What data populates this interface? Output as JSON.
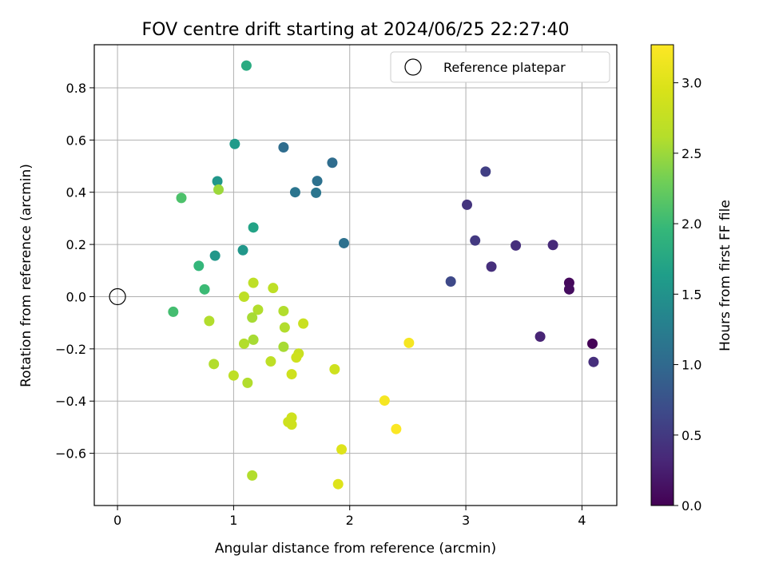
{
  "chart_data": {
    "type": "scatter",
    "title": "FOV centre drift starting at 2024/06/25 22:27:40",
    "xlabel": "Angular distance from reference (arcmin)",
    "ylabel": "Rotation from reference (arcmin)",
    "xlim": [
      -0.2,
      4.3
    ],
    "ylim": [
      -0.8,
      0.965
    ],
    "xticks": [
      0,
      1,
      2,
      3,
      4
    ],
    "xtick_labels": [
      "0",
      "1",
      "2",
      "3",
      "4"
    ],
    "yticks": [
      -0.6,
      -0.4,
      -0.2,
      0.0,
      0.2,
      0.4,
      0.6,
      0.8
    ],
    "ytick_labels": [
      "−0.6",
      "−0.4",
      "−0.2",
      "0.0",
      "0.2",
      "0.4",
      "0.6",
      "0.8"
    ],
    "grid": true,
    "legend": {
      "position": "top-right",
      "label": "Reference platepar"
    },
    "reference_point": {
      "x": 0.0,
      "y": 0.0
    },
    "colorbar": {
      "label": "Hours from first FF file",
      "colormap": "viridis",
      "range": [
        0.0,
        3.27
      ],
      "ticks": [
        0.0,
        0.5,
        1.0,
        1.5,
        2.0,
        2.5,
        3.0
      ],
      "tick_labels": [
        "0.0",
        "0.5",
        "1.0",
        "1.5",
        "2.0",
        "2.5",
        "3.0"
      ]
    },
    "points": [
      {
        "x": 4.09,
        "y": -0.18,
        "c": 0.02
      },
      {
        "x": 3.89,
        "y": 0.053,
        "c": 0.07
      },
      {
        "x": 3.89,
        "y": 0.028,
        "c": 0.1
      },
      {
        "x": 4.1,
        "y": -0.25,
        "c": 0.4
      },
      {
        "x": 3.64,
        "y": -0.153,
        "c": 0.3
      },
      {
        "x": 3.75,
        "y": 0.198,
        "c": 0.35
      },
      {
        "x": 3.43,
        "y": 0.196,
        "c": 0.4
      },
      {
        "x": 3.22,
        "y": 0.115,
        "c": 0.4
      },
      {
        "x": 3.08,
        "y": 0.215,
        "c": 0.5
      },
      {
        "x": 3.01,
        "y": 0.352,
        "c": 0.45
      },
      {
        "x": 3.17,
        "y": 0.479,
        "c": 0.55
      },
      {
        "x": 2.87,
        "y": 0.058,
        "c": 0.65
      },
      {
        "x": 1.95,
        "y": 0.205,
        "c": 1.1
      },
      {
        "x": 1.85,
        "y": 0.513,
        "c": 1.05
      },
      {
        "x": 1.72,
        "y": 0.443,
        "c": 1.1
      },
      {
        "x": 1.71,
        "y": 0.398,
        "c": 1.15
      },
      {
        "x": 1.53,
        "y": 0.4,
        "c": 1.15
      },
      {
        "x": 1.43,
        "y": 0.572,
        "c": 1.05
      },
      {
        "x": 1.01,
        "y": 0.585,
        "c": 1.6
      },
      {
        "x": 0.86,
        "y": 0.442,
        "c": 1.55
      },
      {
        "x": 1.17,
        "y": 0.265,
        "c": 1.7
      },
      {
        "x": 1.08,
        "y": 0.178,
        "c": 1.55
      },
      {
        "x": 0.84,
        "y": 0.157,
        "c": 1.55
      },
      {
        "x": 0.7,
        "y": 0.118,
        "c": 1.95
      },
      {
        "x": 0.75,
        "y": 0.028,
        "c": 2.0
      },
      {
        "x": 0.55,
        "y": 0.378,
        "c": 2.1
      },
      {
        "x": 0.48,
        "y": -0.058,
        "c": 2.05
      },
      {
        "x": 1.11,
        "y": 0.885,
        "c": 1.8
      },
      {
        "x": 0.87,
        "y": 0.41,
        "c": 2.5
      },
      {
        "x": 1.17,
        "y": 0.053,
        "c": 2.7
      },
      {
        "x": 1.34,
        "y": 0.033,
        "c": 2.7
      },
      {
        "x": 1.09,
        "y": 0.0,
        "c": 2.7
      },
      {
        "x": 1.21,
        "y": -0.05,
        "c": 2.6
      },
      {
        "x": 1.16,
        "y": -0.08,
        "c": 2.55
      },
      {
        "x": 0.79,
        "y": -0.093,
        "c": 2.6
      },
      {
        "x": 1.43,
        "y": -0.055,
        "c": 2.6
      },
      {
        "x": 1.44,
        "y": -0.118,
        "c": 2.6
      },
      {
        "x": 1.6,
        "y": -0.103,
        "c": 2.8
      },
      {
        "x": 1.09,
        "y": -0.18,
        "c": 2.6
      },
      {
        "x": 1.17,
        "y": -0.165,
        "c": 2.55
      },
      {
        "x": 1.43,
        "y": -0.192,
        "c": 2.55
      },
      {
        "x": 1.56,
        "y": -0.218,
        "c": 2.8
      },
      {
        "x": 1.54,
        "y": -0.233,
        "c": 2.85
      },
      {
        "x": 0.83,
        "y": -0.258,
        "c": 2.6
      },
      {
        "x": 1.32,
        "y": -0.248,
        "c": 2.7
      },
      {
        "x": 1.0,
        "y": -0.302,
        "c": 2.7
      },
      {
        "x": 1.12,
        "y": -0.33,
        "c": 2.6
      },
      {
        "x": 1.5,
        "y": -0.297,
        "c": 2.85
      },
      {
        "x": 1.87,
        "y": -0.278,
        "c": 2.85
      },
      {
        "x": 1.5,
        "y": -0.463,
        "c": 2.85
      },
      {
        "x": 1.47,
        "y": -0.48,
        "c": 2.85
      },
      {
        "x": 1.5,
        "y": -0.49,
        "c": 2.85
      },
      {
        "x": 1.93,
        "y": -0.585,
        "c": 3.0
      },
      {
        "x": 1.16,
        "y": -0.685,
        "c": 2.6
      },
      {
        "x": 1.9,
        "y": -0.718,
        "c": 3.0
      },
      {
        "x": 2.51,
        "y": -0.177,
        "c": 3.2
      },
      {
        "x": 2.3,
        "y": -0.398,
        "c": 3.2
      },
      {
        "x": 2.4,
        "y": -0.507,
        "c": 3.25
      }
    ]
  }
}
